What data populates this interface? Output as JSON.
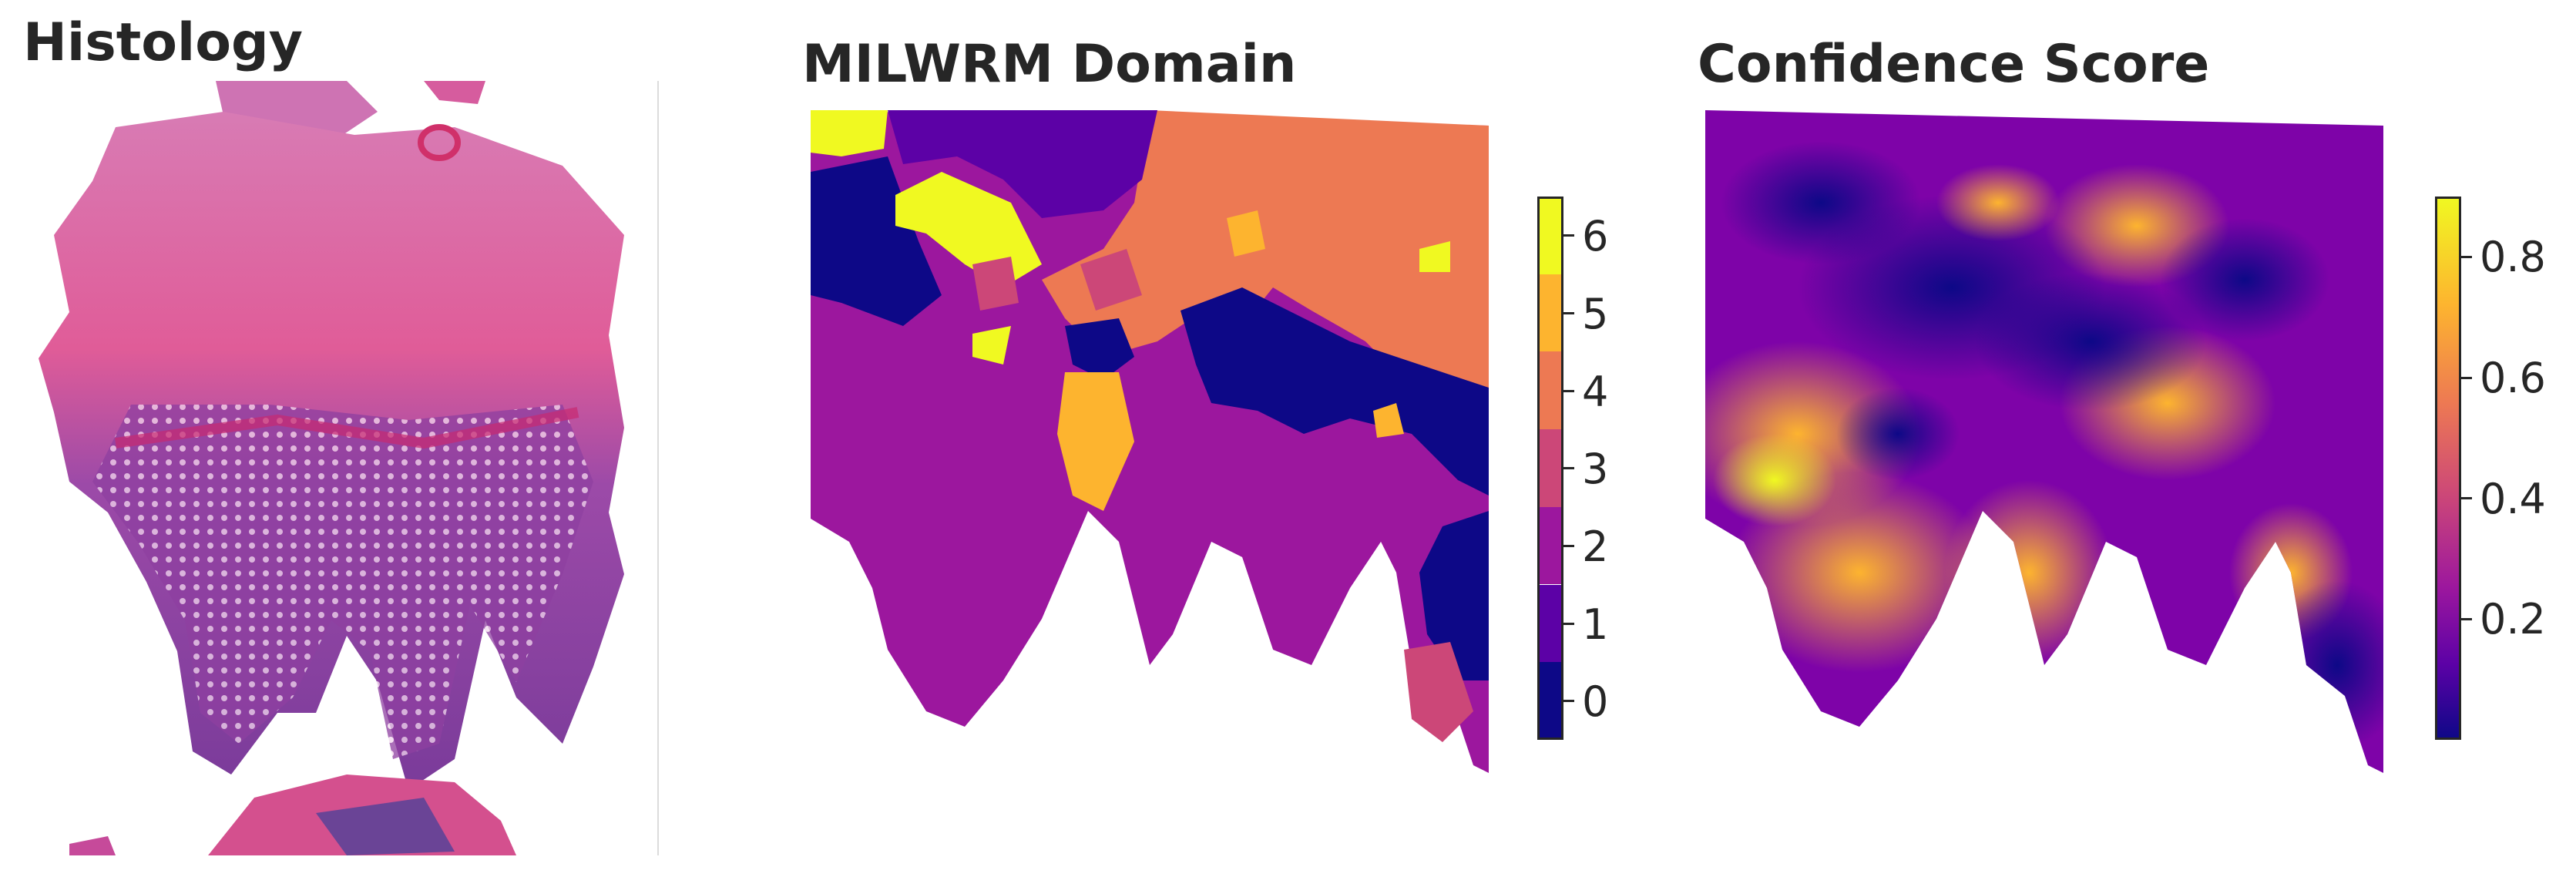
{
  "panels": [
    {
      "title": "Histology"
    },
    {
      "title": "MILWRM Domain"
    },
    {
      "title": "Confidence Score"
    }
  ],
  "domain_colorbar": {
    "ticks": [
      "0",
      "1",
      "2",
      "3",
      "4",
      "5",
      "6"
    ],
    "colors": [
      "#0d0887",
      "#5c01a6",
      "#9c179e",
      "#cc4778",
      "#ed7953",
      "#fdb42f",
      "#f0f921"
    ]
  },
  "confidence_colorbar": {
    "ticks": [
      "0.2",
      "0.4",
      "0.6",
      "0.8"
    ],
    "tick_values": [
      0.2,
      0.4,
      0.6,
      0.8
    ],
    "range": [
      0.0,
      0.9
    ],
    "colormap": "plasma"
  },
  "colors": {
    "plasma_low": "#0d0887",
    "plasma_mid": "#cc4778",
    "plasma_high": "#f0f921",
    "histology_pink": "#e0679c",
    "histology_purple": "#8a3f9e"
  }
}
